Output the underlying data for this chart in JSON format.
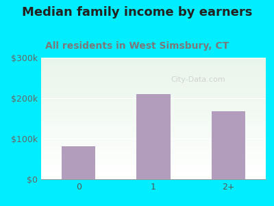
{
  "title": "Median family income by earners",
  "subtitle": "All residents in West Simsbury, CT",
  "categories": [
    "0",
    "1",
    "2+"
  ],
  "values": [
    82000,
    210000,
    168000
  ],
  "bar_color": "#b39dbd",
  "title_color": "#222222",
  "subtitle_color": "#7a7a7a",
  "background_outer": "#00eeff",
  "gradient_top": "#e8f5e9",
  "gradient_bottom": "#ffffff",
  "ylim": [
    0,
    300000
  ],
  "yticks": [
    0,
    100000,
    200000,
    300000
  ],
  "ytick_labels": [
    "$0",
    "$100k",
    "$200k",
    "$300k"
  ],
  "watermark": "City-Data.com",
  "title_fontsize": 13,
  "subtitle_fontsize": 10,
  "tick_label_fontsize": 9
}
